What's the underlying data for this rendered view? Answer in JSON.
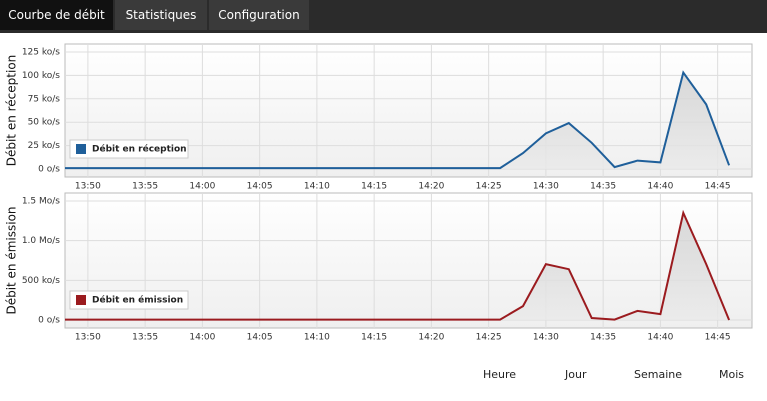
{
  "tabs": [
    "Courbe de débit",
    "Statistiques",
    "Configuration"
  ],
  "chart_data": [
    {
      "type": "line",
      "ylabel": "Débit en réception",
      "legend": "lower left",
      "x": [
        "13:48",
        "13:50",
        "13:52",
        "13:54",
        "13:56",
        "13:58",
        "14:00",
        "14:02",
        "14:04",
        "14:06",
        "14:08",
        "14:10",
        "14:12",
        "14:14",
        "14:16",
        "14:18",
        "14:20",
        "14:22",
        "14:24",
        "14:26",
        "14:28",
        "14:30",
        "14:32",
        "14:34",
        "14:36",
        "14:38",
        "14:40",
        "14:42",
        "14:44",
        "14:46"
      ],
      "xlim": [
        "13:48",
        "14:48"
      ],
      "xticks": [
        "13:50",
        "13:55",
        "14:00",
        "14:05",
        "14:10",
        "14:15",
        "14:20",
        "14:25",
        "14:30",
        "14:35",
        "14:40",
        "14:45"
      ],
      "ylim": [
        0,
        125
      ],
      "yticks": [
        {
          "value": 0,
          "label": "0 o/s"
        },
        {
          "value": 25,
          "label": "25 ko/s"
        },
        {
          "value": 50,
          "label": "50 ko/s"
        },
        {
          "value": 75,
          "label": "75 ko/s"
        },
        {
          "value": 100,
          "label": "100 ko/s"
        },
        {
          "value": 125,
          "label": "125 ko/s"
        }
      ],
      "grid": true,
      "series": [
        {
          "name": "Débit en réception",
          "color": "#1f5f9a",
          "values": [
            1,
            1,
            1,
            1,
            1,
            1,
            1,
            1,
            1,
            1,
            1,
            1,
            1,
            1,
            1,
            1,
            1,
            1,
            1,
            1,
            17,
            38,
            49,
            28,
            2,
            9,
            7,
            103,
            69,
            4
          ]
        }
      ]
    },
    {
      "type": "line",
      "ylabel": "Débit en émission",
      "legend": "lower left",
      "x": [
        "13:48",
        "13:50",
        "13:52",
        "13:54",
        "13:56",
        "13:58",
        "14:00",
        "14:02",
        "14:04",
        "14:06",
        "14:08",
        "14:10",
        "14:12",
        "14:14",
        "14:16",
        "14:18",
        "14:20",
        "14:22",
        "14:24",
        "14:26",
        "14:28",
        "14:30",
        "14:32",
        "14:34",
        "14:36",
        "14:38",
        "14:40",
        "14:42",
        "14:44",
        "14:46"
      ],
      "xlim": [
        "13:48",
        "14:48"
      ],
      "xticks": [
        "13:50",
        "13:55",
        "14:00",
        "14:05",
        "14:10",
        "14:15",
        "14:20",
        "14:25",
        "14:30",
        "14:35",
        "14:40",
        "14:45"
      ],
      "ylim": [
        0,
        1500
      ],
      "yticks": [
        {
          "value": 0,
          "label": "0 o/s"
        },
        {
          "value": 500,
          "label": "500 ko/s"
        },
        {
          "value": 1000,
          "label": "1.0 Mo/s"
        },
        {
          "value": 1500,
          "label": "1.5 Mo/s"
        }
      ],
      "grid": true,
      "series": [
        {
          "name": "Débit en émission",
          "color": "#9b1b1f",
          "values": [
            5,
            5,
            5,
            5,
            5,
            5,
            5,
            5,
            5,
            5,
            5,
            5,
            5,
            5,
            5,
            5,
            5,
            5,
            5,
            5,
            175,
            705,
            640,
            25,
            5,
            115,
            75,
            1350,
            705,
            0
          ]
        }
      ]
    }
  ],
  "ranges": [
    "Heure",
    "Jour",
    "Semaine",
    "Mois"
  ]
}
